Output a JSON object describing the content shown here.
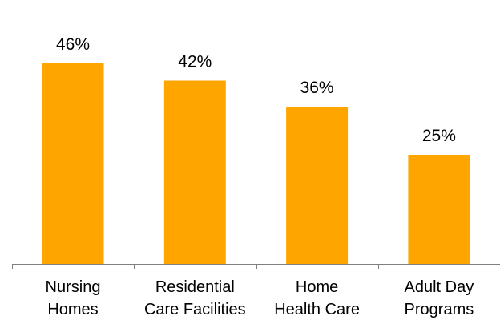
{
  "chart_data": {
    "type": "bar",
    "categories": [
      [
        "Nursing",
        "Homes"
      ],
      [
        "Residential",
        "Care Facilities"
      ],
      [
        "Home",
        "Health Care"
      ],
      [
        "Adult Day",
        "Programs"
      ]
    ],
    "values": [
      46,
      42,
      36,
      25
    ],
    "value_labels": [
      "46%",
      "42%",
      "36%",
      "25%"
    ],
    "ylim": [
      0,
      50
    ],
    "grid": false,
    "legend": "none",
    "bar_color": "#FFA500",
    "axis_color": "#808080",
    "text_color": "#000000"
  }
}
